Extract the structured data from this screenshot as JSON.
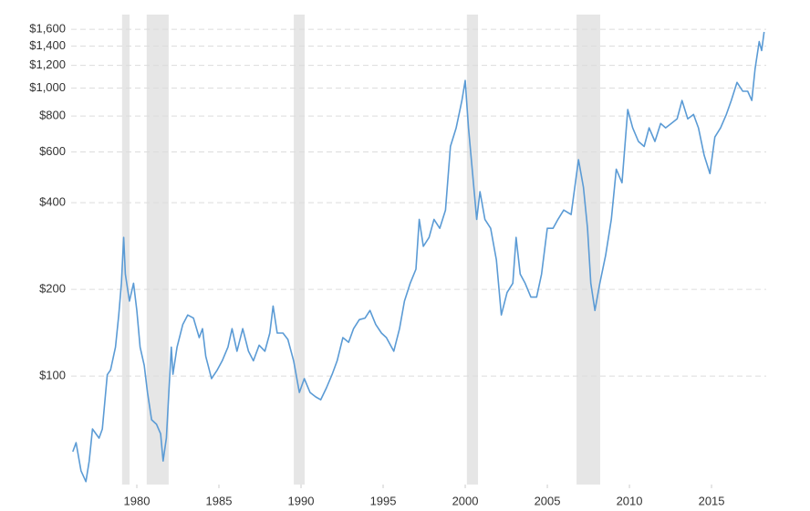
{
  "chart_data": {
    "type": "line",
    "log_scale": true,
    "grid": true,
    "color": "#5b9bd5",
    "shade_color": "#e6e6e6",
    "xlim": [
      1976,
      2018.33
    ],
    "xticks": [
      1980,
      1985,
      1990,
      1995,
      2000,
      2005,
      2010,
      2015
    ],
    "ylim": [
      42,
      1800
    ],
    "yticks": [
      {
        "value": 100,
        "label": "$100"
      },
      {
        "value": 200,
        "label": "$200"
      },
      {
        "value": 400,
        "label": "$400"
      },
      {
        "value": 600,
        "label": "$600"
      },
      {
        "value": 800,
        "label": "$800"
      },
      {
        "value": 1000,
        "label": "$1,000"
      },
      {
        "value": 1200,
        "label": "$1,200"
      },
      {
        "value": 1400,
        "label": "$1,400"
      },
      {
        "value": 1600,
        "label": "$1,600"
      }
    ],
    "recessions": [
      [
        1979.1,
        1979.56
      ],
      [
        1980.6,
        1981.94
      ],
      [
        1989.56,
        1990.22
      ],
      [
        2000.1,
        2000.78
      ],
      [
        2006.78,
        2008.22
      ]
    ],
    "x": [
      1976.1,
      1976.3,
      1976.6,
      1976.9,
      1977.1,
      1977.3,
      1977.7,
      1977.9,
      1978.2,
      1978.4,
      1978.7,
      1978.9,
      1979.06,
      1979.2,
      1979.3,
      1979.55,
      1979.8,
      1980,
      1980.2,
      1980.45,
      1980.65,
      1980.9,
      1981.2,
      1981.45,
      1981.6,
      1981.8,
      1982.1,
      1982.2,
      1982.45,
      1982.8,
      1983.1,
      1983.45,
      1983.8,
      1984,
      1984.2,
      1984.55,
      1984.9,
      1985.2,
      1985.55,
      1985.8,
      1986.1,
      1986.45,
      1986.8,
      1987.1,
      1987.45,
      1987.8,
      1988.1,
      1988.3,
      1988.55,
      1988.9,
      1989.2,
      1989.55,
      1989.9,
      1990.2,
      1990.55,
      1990.9,
      1991.2,
      1991.55,
      1991.9,
      1992.2,
      1992.55,
      1992.9,
      1993.2,
      1993.55,
      1993.9,
      1994.2,
      1994.55,
      1994.9,
      1995.2,
      1995.65,
      1996,
      1996.3,
      1996.65,
      1997,
      1997.2,
      1997.45,
      1997.8,
      1998.1,
      1998.45,
      1998.8,
      1999.1,
      1999.45,
      1999.8,
      2000,
      2000.2,
      2000.45,
      2000.7,
      2000.9,
      2001.2,
      2001.55,
      2001.9,
      2002.2,
      2002.55,
      2002.9,
      2003.1,
      2003.35,
      2003.65,
      2004,
      2004.35,
      2004.65,
      2005,
      2005.35,
      2005.65,
      2006,
      2006.45,
      2006.9,
      2007.2,
      2007.45,
      2007.65,
      2007.9,
      2008.2,
      2008.55,
      2008.9,
      2009.2,
      2009.55,
      2009.9,
      2010.2,
      2010.55,
      2010.9,
      2011.2,
      2011.55,
      2011.9,
      2012.2,
      2012.55,
      2012.9,
      2013.2,
      2013.55,
      2013.9,
      2014.2,
      2014.55,
      2014.9,
      2015.2,
      2015.55,
      2015.9,
      2016.2,
      2016.55,
      2016.9,
      2017.2,
      2017.45,
      2017.65,
      2017.9,
      2018.05,
      2018.2
    ],
    "values": [
      54.6,
      58.7,
      46.9,
      43,
      50.7,
      65.5,
      60.9,
      65.5,
      101,
      105,
      126,
      163,
      210,
      303,
      226,
      182,
      210,
      169,
      126,
      109,
      87.7,
      70.5,
      68,
      63,
      50.7,
      61,
      126,
      101.5,
      126,
      151,
      163,
      159,
      136,
      146,
      117,
      98,
      105,
      113,
      126,
      146,
      122,
      146,
      122,
      113,
      128,
      122,
      141,
      175,
      141,
      141,
      134,
      113,
      87.7,
      98,
      87.7,
      84.6,
      82.7,
      91,
      101.5,
      113,
      136,
      131,
      146,
      157,
      159,
      169,
      151,
      141,
      136,
      122,
      146,
      182,
      210,
      235,
      350,
      282,
      303,
      350,
      326,
      377,
      627,
      728,
      906,
      1063,
      728,
      505,
      350,
      437,
      350,
      326,
      253,
      163,
      195,
      210,
      303,
      226,
      210,
      188,
      188,
      226,
      326,
      326,
      350,
      377,
      364,
      564,
      453,
      326,
      210,
      169,
      210,
      262,
      350,
      523,
      469,
      842,
      728,
      653,
      627,
      728,
      653,
      754,
      728,
      754,
      782,
      906,
      782,
      810,
      728,
      584,
      505,
      676,
      728,
      810,
      906,
      1047,
      975,
      975,
      906,
      1167,
      1450,
      1350,
      1567
    ]
  }
}
